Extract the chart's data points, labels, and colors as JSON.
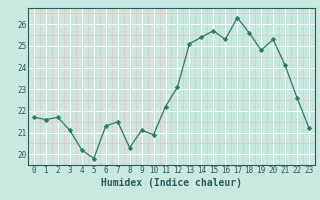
{
  "x": [
    0,
    1,
    2,
    3,
    4,
    5,
    6,
    7,
    8,
    9,
    10,
    11,
    12,
    13,
    14,
    15,
    16,
    17,
    18,
    19,
    20,
    21,
    22,
    23
  ],
  "y": [
    21.7,
    21.6,
    21.7,
    21.1,
    20.2,
    19.8,
    21.3,
    21.5,
    20.3,
    21.1,
    20.9,
    22.2,
    23.1,
    25.1,
    25.4,
    25.7,
    25.3,
    26.3,
    25.6,
    24.8,
    25.3,
    24.1,
    22.6,
    21.2
  ],
  "line_color": "#2d7a6a",
  "marker": "D",
  "marker_size": 2.2,
  "bg_color": "#c8e8e0",
  "grid_major_color": "#ffffff",
  "grid_minor_color": "#e8c0c0",
  "xlabel": "Humidex (Indice chaleur)",
  "ylim": [
    19.5,
    26.75
  ],
  "xlim": [
    -0.5,
    23.5
  ],
  "yticks": [
    20,
    21,
    22,
    23,
    24,
    25,
    26
  ],
  "xticks": [
    0,
    1,
    2,
    3,
    4,
    5,
    6,
    7,
    8,
    9,
    10,
    11,
    12,
    13,
    14,
    15,
    16,
    17,
    18,
    19,
    20,
    21,
    22,
    23
  ],
  "tick_fontsize": 5.5,
  "xlabel_fontsize": 7.0,
  "tick_color": "#2d5a5a",
  "spine_color": "#2d5a5a"
}
